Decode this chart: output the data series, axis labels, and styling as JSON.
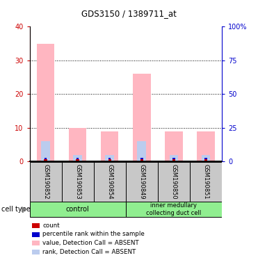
{
  "title": "GDS3150 / 1389711_at",
  "samples": [
    "GSM190852",
    "GSM190853",
    "GSM190854",
    "GSM190849",
    "GSM190850",
    "GSM190851"
  ],
  "left_ylim": [
    0,
    40
  ],
  "right_ylim": [
    0,
    100
  ],
  "left_ticks": [
    0,
    10,
    20,
    30,
    40
  ],
  "right_ticks": [
    0,
    25,
    50,
    75,
    100
  ],
  "right_tick_labels": [
    "0",
    "25",
    "50",
    "75",
    "100%"
  ],
  "pink_bar_values": [
    35,
    10,
    9,
    26,
    9,
    9
  ],
  "blue_bar_values": [
    6,
    2,
    2,
    6,
    2,
    2
  ],
  "light_pink_color": "#FFB6C1",
  "light_blue_color": "#BBCCEE",
  "red_color": "#CC0000",
  "blue_color": "#0000CC",
  "left_tick_color": "#CC0000",
  "right_tick_color": "#0000CC",
  "bg_color": "#FFFFFF",
  "group_label_bg": "#90EE90",
  "sample_bg": "#C8C8C8",
  "legend_labels": [
    "count",
    "percentile rank within the sample",
    "value, Detection Call = ABSENT",
    "rank, Detection Call = ABSENT"
  ],
  "x_positions": [
    0,
    1,
    2,
    3,
    4,
    5
  ],
  "control_indices": [
    0,
    1,
    2
  ],
  "imcd_indices": [
    3,
    4,
    5
  ]
}
